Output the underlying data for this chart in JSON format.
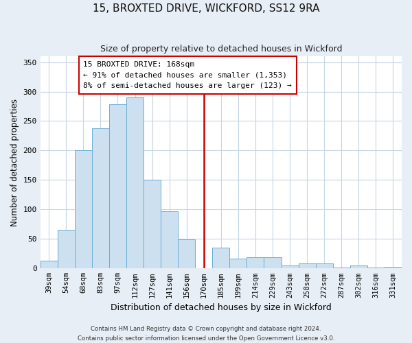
{
  "title": "15, BROXTED DRIVE, WICKFORD, SS12 9RA",
  "subtitle": "Size of property relative to detached houses in Wickford",
  "xlabel": "Distribution of detached houses by size in Wickford",
  "ylabel": "Number of detached properties",
  "categories": [
    "39sqm",
    "54sqm",
    "68sqm",
    "83sqm",
    "97sqm",
    "112sqm",
    "127sqm",
    "141sqm",
    "156sqm",
    "170sqm",
    "185sqm",
    "199sqm",
    "214sqm",
    "229sqm",
    "243sqm",
    "258sqm",
    "272sqm",
    "287sqm",
    "302sqm",
    "316sqm",
    "331sqm"
  ],
  "values": [
    13,
    65,
    200,
    238,
    278,
    290,
    150,
    97,
    49,
    0,
    35,
    17,
    19,
    19,
    5,
    8,
    8,
    1,
    5,
    1,
    3
  ],
  "bar_color": "#cce0f0",
  "bar_edge_color": "#6aaed6",
  "vline_x_index": 9,
  "vline_color": "#cc0000",
  "annotation_title": "15 BROXTED DRIVE: 168sqm",
  "annotation_line1": "← 91% of detached houses are smaller (1,353)",
  "annotation_line2": "8% of semi-detached houses are larger (123) →",
  "annotation_box_edge": "#cc0000",
  "annotation_bg": "#ffffff",
  "ylim": [
    0,
    360
  ],
  "yticks": [
    0,
    50,
    100,
    150,
    200,
    250,
    300,
    350
  ],
  "footer1": "Contains HM Land Registry data © Crown copyright and database right 2024.",
  "footer2": "Contains public sector information licensed under the Open Government Licence v3.0.",
  "fig_bg_color": "#e8eef5",
  "plot_bg_color": "#ffffff",
  "grid_color": "#c5d5e5"
}
